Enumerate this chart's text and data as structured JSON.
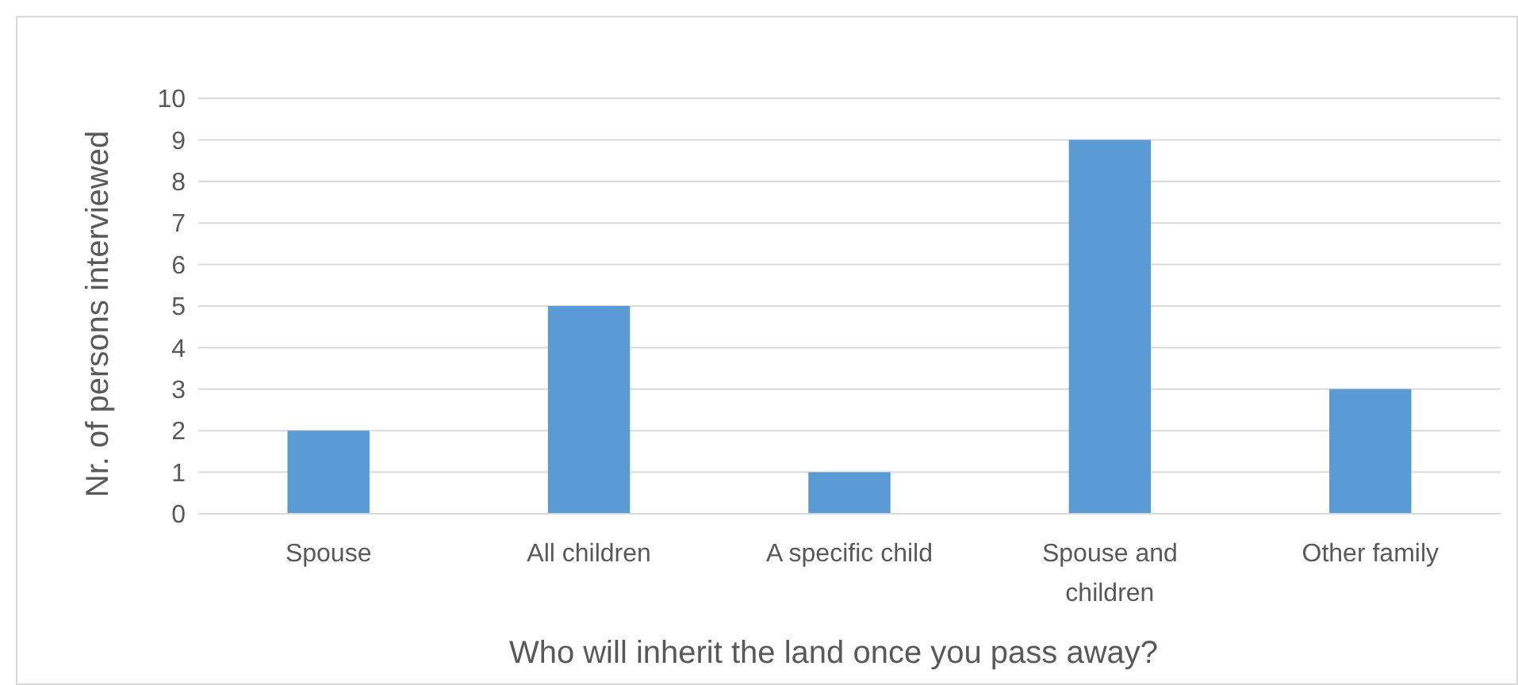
{
  "chart_data": {
    "type": "bar",
    "xlabel": "Who will inherit the land once you pass away?",
    "ylabel": "Nr. of persons interviewed",
    "categories": [
      "Spouse",
      "All children",
      "A specific child",
      "Spouse and children",
      "Other family"
    ],
    "values": [
      2,
      5,
      1,
      9,
      3
    ],
    "color": "#5b9bd5",
    "ylim": [
      0,
      10
    ],
    "yticks": [
      0,
      1,
      2,
      3,
      4,
      5,
      6,
      7,
      8,
      9,
      10
    ],
    "grid": "y"
  }
}
